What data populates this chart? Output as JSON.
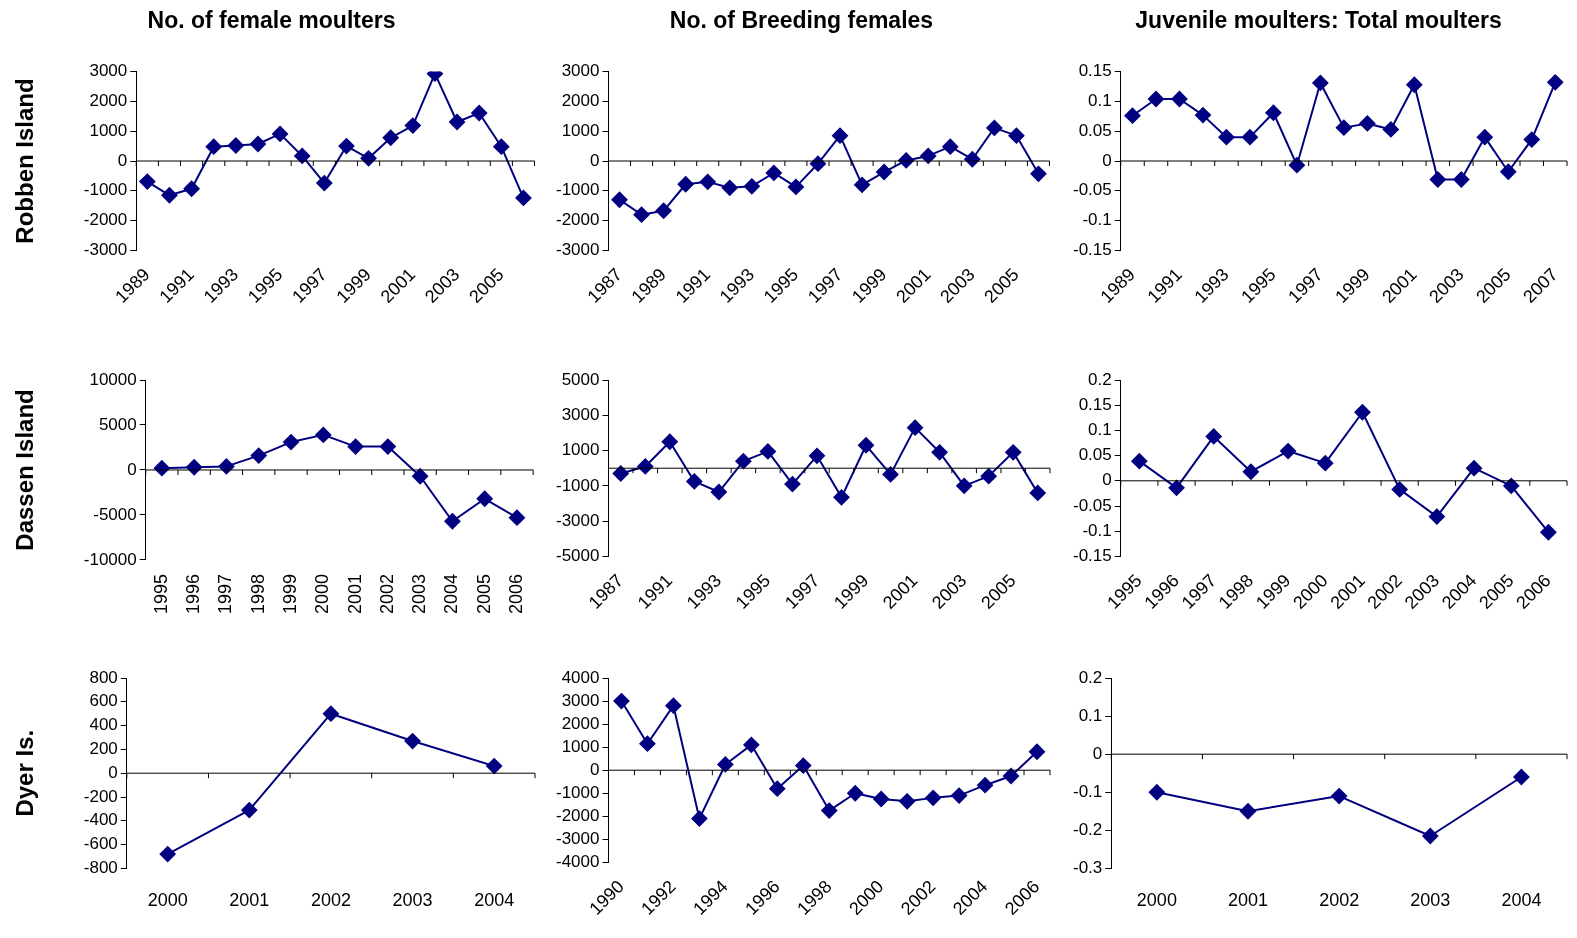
{
  "chart_data": [
    {
      "type": "line",
      "title": "No. of female moulters",
      "ylabel": "Robben Island",
      "categories": [
        "1989",
        null,
        "1991",
        null,
        "1993",
        null,
        "1995",
        null,
        "1997",
        null,
        "1999",
        null,
        "2001",
        null,
        "2003",
        null,
        "2005",
        null
      ],
      "series": [
        {
          "color": "#000080",
          "values": [
            -690,
            -1150,
            -930,
            480,
            520,
            570,
            910,
            170,
            -740,
            500,
            90,
            780,
            1190,
            2930,
            1310,
            1610,
            480,
            -1240
          ]
        }
      ],
      "ylim": [
        -3000,
        3000
      ],
      "yticks": [
        -3000,
        -2000,
        -1000,
        0,
        1000,
        2000,
        3000
      ],
      "ref_lines": [
        {
          "axis": "y",
          "value": 0,
          "color": "#000000"
        }
      ],
      "grid": false,
      "legend": false,
      "marker": "diamond",
      "line_style": "solid"
    },
    {
      "type": "line",
      "title": "No. of Breeding females",
      "categories": [
        "1987",
        null,
        "1989",
        null,
        "1991",
        null,
        "1993",
        null,
        "1995",
        null,
        "1997",
        null,
        "1999",
        null,
        "2001",
        null,
        "2003",
        null,
        "2005",
        null
      ],
      "series": [
        {
          "color": "#000080",
          "values": [
            -1300,
            -1800,
            -1670,
            -780,
            -700,
            -900,
            -850,
            -400,
            -870,
            -90,
            850,
            -800,
            -370,
            20,
            170,
            480,
            60,
            1110,
            850,
            -430
          ]
        }
      ],
      "ylim": [
        -3000,
        3000
      ],
      "yticks": [
        -3000,
        -2000,
        -1000,
        0,
        1000,
        2000,
        3000
      ],
      "ref_lines": [
        {
          "axis": "y",
          "value": 0,
          "color": "#000000"
        }
      ],
      "grid": false,
      "legend": false,
      "marker": "diamond",
      "line_style": "solid"
    },
    {
      "type": "line",
      "title": "Juvenile moulters: Total moulters",
      "categories": [
        "1989",
        null,
        "1991",
        null,
        "1993",
        null,
        "1995",
        null,
        "1997",
        null,
        "1999",
        null,
        "2001",
        null,
        "2003",
        null,
        "2005",
        null,
        "2007"
      ],
      "series": [
        {
          "color": "#000080",
          "values": [
            0.076,
            0.104,
            0.104,
            0.077,
            0.04,
            0.04,
            0.081,
            -0.007,
            0.131,
            0.056,
            0.063,
            0.053,
            0.128,
            -0.031,
            -0.031,
            0.04,
            -0.018,
            0.036,
            0.132
          ]
        }
      ],
      "ylim": [
        -0.15,
        0.15
      ],
      "yticks": [
        -0.15,
        -0.1,
        -0.05,
        0,
        0.05,
        0.1,
        0.15
      ],
      "ref_lines": [
        {
          "axis": "y",
          "value": 0,
          "color": "#000000"
        }
      ],
      "grid": false,
      "legend": false,
      "marker": "diamond",
      "line_style": "solid"
    },
    {
      "type": "line",
      "ylabel": "Dassen Island",
      "categories": [
        "1995",
        "1996",
        "1997",
        "1998",
        "1999",
        "2000",
        "2001",
        "2002",
        "2003",
        "2004",
        "2005",
        "2006"
      ],
      "series": [
        {
          "color": "#000080",
          "values": [
            200,
            300,
            400,
            1600,
            3100,
            3900,
            2600,
            2600,
            -700,
            -5700,
            -3200,
            -5300
          ]
        }
      ],
      "ylim": [
        -10000,
        10000
      ],
      "yticks": [
        -10000,
        -5000,
        0,
        5000,
        10000
      ],
      "ref_lines": [
        {
          "axis": "y",
          "value": 0,
          "color": "#000000"
        }
      ],
      "grid": false,
      "legend": false,
      "marker": "diamond",
      "line_style": "solid"
    },
    {
      "type": "line",
      "categories": [
        "1987",
        null,
        "1991",
        null,
        "1993",
        null,
        "1995",
        null,
        "1997",
        null,
        "1999",
        null,
        "2001",
        null,
        "2003",
        null,
        "2005",
        null
      ],
      "series": [
        {
          "color": "#000080",
          "values": [
            -300,
            100,
            1500,
            -750,
            -1350,
            400,
            950,
            -900,
            700,
            -1650,
            1300,
            -350,
            2300,
            900,
            -1000,
            -450,
            900,
            -1400
          ]
        }
      ],
      "ylim": [
        -5000,
        5000
      ],
      "yticks": [
        -5000,
        -3000,
        -1000,
        1000,
        3000,
        5000
      ],
      "ref_lines": [
        {
          "axis": "y",
          "value": 0,
          "color": "#000000"
        }
      ],
      "grid": false,
      "legend": false,
      "marker": "diamond",
      "line_style": "solid"
    },
    {
      "type": "line",
      "categories": [
        "1995",
        "1996",
        "1997",
        "1998",
        "1999",
        "2000",
        "2001",
        "2002",
        "2003",
        "2004",
        "2005",
        "2006"
      ],
      "series": [
        {
          "color": "#000080",
          "values": [
            0.039,
            -0.014,
            0.088,
            0.018,
            0.059,
            0.035,
            0.136,
            -0.017,
            -0.071,
            0.025,
            -0.01,
            -0.102
          ]
        }
      ],
      "ylim": [
        -0.15,
        0.2
      ],
      "yticks": [
        -0.15,
        -0.1,
        -0.05,
        0,
        0.05,
        0.1,
        0.15,
        0.2
      ],
      "ref_lines": [
        {
          "axis": "y",
          "value": 0,
          "color": "#000000"
        }
      ],
      "grid": false,
      "legend": false,
      "marker": "diamond",
      "line_style": "solid"
    },
    {
      "type": "line",
      "ylabel": "Dyer Is.",
      "categories": [
        "2000",
        "2001",
        "2002",
        "2003",
        "2004"
      ],
      "series": [
        {
          "color": "#000080",
          "values": [
            -680,
            -310,
            500,
            270,
            60
          ]
        }
      ],
      "ylim": [
        -800,
        800
      ],
      "yticks": [
        -800,
        -600,
        -400,
        -200,
        0,
        200,
        400,
        600,
        800
      ],
      "ref_lines": [
        {
          "axis": "y",
          "value": 0,
          "color": "#000000"
        }
      ],
      "grid": false,
      "legend": false,
      "marker": "diamond",
      "line_style": "solid"
    },
    {
      "type": "line",
      "categories": [
        "1990",
        null,
        "1992",
        null,
        "1994",
        null,
        "1996",
        null,
        "1998",
        null,
        "2000",
        null,
        "2002",
        null,
        "2004",
        null,
        "2006"
      ],
      "series": [
        {
          "color": "#000080",
          "values": [
            3000,
            1150,
            2800,
            -2100,
            250,
            1100,
            -800,
            200,
            -1750,
            -1000,
            -1250,
            -1350,
            -1200,
            -1100,
            -650,
            -250,
            800
          ]
        }
      ],
      "ylim": [
        -4000,
        4000
      ],
      "yticks": [
        -4000,
        -3000,
        -2000,
        -1000,
        0,
        1000,
        2000,
        3000,
        4000
      ],
      "ref_lines": [
        {
          "axis": "y",
          "value": 0,
          "color": "#000000"
        }
      ],
      "grid": false,
      "legend": false,
      "marker": "diamond",
      "line_style": "solid"
    },
    {
      "type": "line",
      "categories": [
        "2000",
        "2001",
        "2002",
        "2003",
        "2004"
      ],
      "series": [
        {
          "color": "#000080",
          "values": [
            -0.1,
            -0.15,
            -0.11,
            -0.215,
            -0.06
          ]
        }
      ],
      "ylim": [
        -0.3,
        0.2
      ],
      "yticks": [
        -0.3,
        -0.2,
        -0.1,
        0,
        0.1,
        0.2
      ],
      "ref_lines": [
        {
          "axis": "y",
          "value": 0,
          "color": "#000000"
        }
      ],
      "grid": false,
      "legend": false,
      "marker": "diamond",
      "line_style": "solid"
    }
  ]
}
